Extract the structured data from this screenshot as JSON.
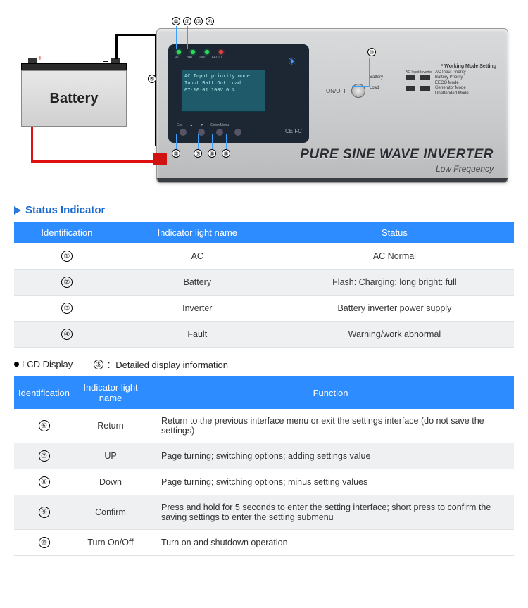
{
  "diagram": {
    "battery_label": "Battery",
    "inverter_title": "PURE SINE WAVE INVERTER",
    "inverter_sub": "Low Frequency",
    "onoff_label": "ON/OFF",
    "lcd_text": "AC Input priority mode\nInput Batt Out Load\n07:16:01 100V  0 %",
    "led_labels": [
      "AC",
      "BAT",
      "INV",
      "FAULT"
    ],
    "btn_labels": [
      "Esc",
      "▲",
      "▼",
      "Enter/Menu"
    ],
    "ce_text": "CE FC",
    "dip_title": "* Working Mode Setting",
    "dip_rows": [
      [
        "",
        "AC Input",
        "Inverter",
        "AC Input Priority"
      ],
      [
        "Battery",
        "",
        "",
        "Battery Priority"
      ],
      [
        "",
        "",
        "",
        "EECO Mode"
      ],
      [
        "Load",
        "",
        "",
        "Generator Mode"
      ],
      [
        "",
        "",
        "",
        "Unattended Mode"
      ]
    ],
    "callouts": [
      "①",
      "②",
      "③",
      "④",
      "⑤",
      "⑥",
      "⑦",
      "⑧",
      "⑨",
      "⑩"
    ]
  },
  "section1_title": "Status Indicator",
  "table1": {
    "headers": [
      "Identification",
      "Indicator light name",
      "Status"
    ],
    "rows": [
      {
        "id": "①",
        "name": "AC",
        "status": "AC  Normal"
      },
      {
        "id": "②",
        "name": "Battery",
        "status": "Flash: Charging; long bright: full"
      },
      {
        "id": "③",
        "name": "Inverter",
        "status": "Battery inverter power supply"
      },
      {
        "id": "④",
        "name": "Fault",
        "status": "Warning/work abnormal"
      }
    ]
  },
  "lcd_note_prefix": "LCD Display——",
  "lcd_note_id": "⑤",
  "lcd_note_suffix": "：Detailed display information",
  "table2": {
    "headers": [
      "Identification",
      "Indicator light name",
      "Function"
    ],
    "rows": [
      {
        "id": "⑥",
        "name": "Return",
        "fn": "Return to the previous interface menu or exit the settings interface (do not save the settings)"
      },
      {
        "id": "⑦",
        "name": "UP",
        "fn": "Page turning; switching options; adding settings value"
      },
      {
        "id": "⑧",
        "name": "Down",
        "fn": "Page turning; switching options; minus setting values"
      },
      {
        "id": "⑨",
        "name": "Confirm",
        "fn": "Press and hold for 5 seconds to enter the setting interface; short press to confirm the saving settings to enter the setting submenu"
      },
      {
        "id": "⑩",
        "name": "Turn On/Off",
        "fn": "Turn on and shutdown operation"
      }
    ]
  },
  "colors": {
    "header_bg": "#2d8cff",
    "row_alt": "#eef0f1",
    "accent": "#2a7ad6"
  }
}
